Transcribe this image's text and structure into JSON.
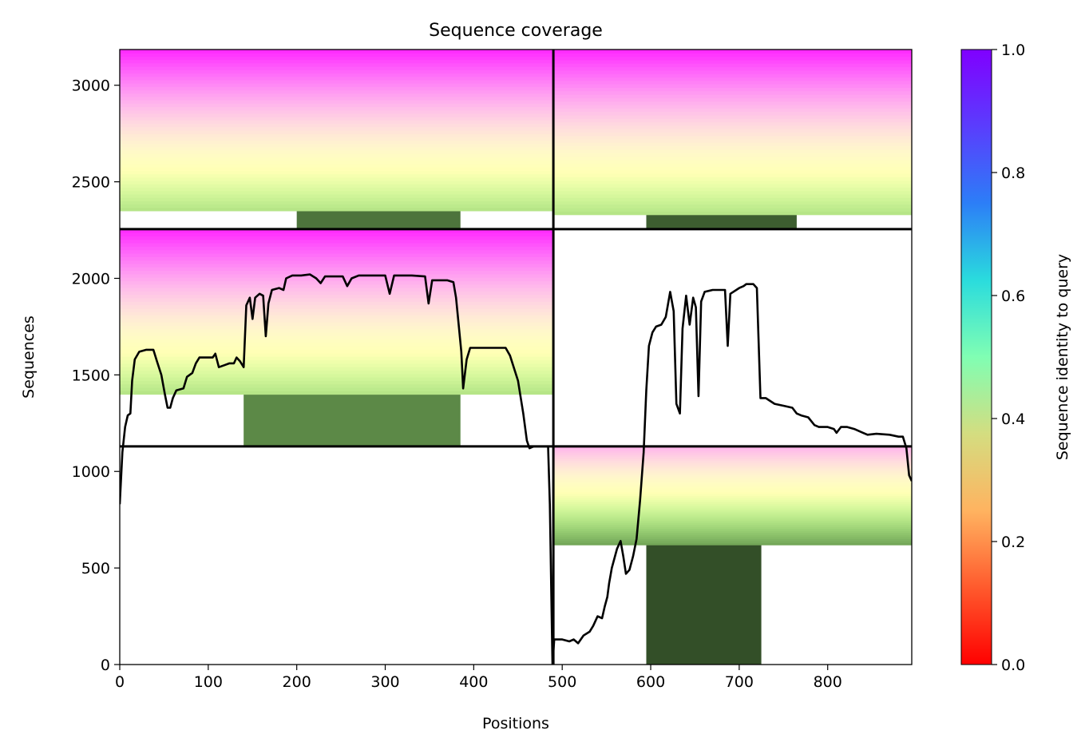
{
  "chart_data": {
    "type": "heatmap",
    "title": "Sequence coverage",
    "xlabel": "Positions",
    "ylabel": "Sequences",
    "xlim": [
      0,
      895
    ],
    "ylim": [
      0,
      3185
    ],
    "xticks": [
      0,
      100,
      200,
      300,
      400,
      500,
      600,
      700,
      800
    ],
    "yticks": [
      0,
      500,
      1000,
      1500,
      2000,
      2500,
      3000
    ],
    "chain_boundary_x": 490,
    "chain_boundary_y": 1130,
    "panel_boundary_y": 2255,
    "colorbar": {
      "label": "Sequence identity to query",
      "colormap": "rainbow_r",
      "range": [
        0,
        1
      ],
      "ticks": [
        "0.0",
        "0.2",
        "0.4",
        "0.6",
        "0.8",
        "1.0"
      ]
    },
    "blocks": [
      {
        "x0": 0,
        "x1": 490,
        "y0": 1130,
        "y1": 1400,
        "identity": 0.18,
        "x_extent": [
          140,
          385
        ]
      },
      {
        "x0": 0,
        "x1": 490,
        "y0": 1400,
        "y1": 2255,
        "identity_bottom": 0.35,
        "identity_top": 0.95
      },
      {
        "x0": 0,
        "x1": 490,
        "y0": 2255,
        "y1": 2350,
        "identity": 0.15,
        "x_extent": [
          200,
          385
        ]
      },
      {
        "x0": 0,
        "x1": 490,
        "y0": 2350,
        "y1": 3185,
        "identity_bottom": 0.35,
        "identity_top": 0.95
      },
      {
        "x0": 490,
        "x1": 895,
        "y0": 0,
        "y1": 620,
        "identity": 0.1,
        "x_extent": [
          595,
          725
        ]
      },
      {
        "x0": 490,
        "x1": 895,
        "y0": 620,
        "y1": 1130,
        "identity_bottom": 0.22,
        "identity_top": 0.75
      },
      {
        "x0": 490,
        "x1": 895,
        "y0": 2255,
        "y1": 2330,
        "identity": 0.12,
        "x_extent": [
          595,
          765
        ]
      },
      {
        "x0": 490,
        "x1": 895,
        "y0": 2330,
        "y1": 3185,
        "identity_bottom": 0.35,
        "identity_top": 0.95
      }
    ],
    "coverage_line": {
      "name": "coverage",
      "points": [
        [
          0,
          830
        ],
        [
          3,
          1100
        ],
        [
          6,
          1230
        ],
        [
          9,
          1290
        ],
        [
          12,
          1300
        ],
        [
          14,
          1470
        ],
        [
          17,
          1580
        ],
        [
          22,
          1620
        ],
        [
          30,
          1630
        ],
        [
          38,
          1630
        ],
        [
          42,
          1570
        ],
        [
          47,
          1500
        ],
        [
          51,
          1400
        ],
        [
          54,
          1330
        ],
        [
          57,
          1330
        ],
        [
          60,
          1380
        ],
        [
          64,
          1420
        ],
        [
          72,
          1430
        ],
        [
          76,
          1490
        ],
        [
          82,
          1510
        ],
        [
          86,
          1560
        ],
        [
          90,
          1590
        ],
        [
          98,
          1590
        ],
        [
          105,
          1590
        ],
        [
          108,
          1610
        ],
        [
          112,
          1540
        ],
        [
          118,
          1550
        ],
        [
          124,
          1560
        ],
        [
          129,
          1560
        ],
        [
          132,
          1590
        ],
        [
          136,
          1570
        ],
        [
          140,
          1540
        ],
        [
          143,
          1860
        ],
        [
          147,
          1900
        ],
        [
          150,
          1790
        ],
        [
          153,
          1900
        ],
        [
          158,
          1920
        ],
        [
          162,
          1910
        ],
        [
          165,
          1700
        ],
        [
          168,
          1870
        ],
        [
          172,
          1940
        ],
        [
          180,
          1950
        ],
        [
          185,
          1940
        ],
        [
          188,
          2000
        ],
        [
          195,
          2015
        ],
        [
          205,
          2015
        ],
        [
          215,
          2020
        ],
        [
          222,
          2000
        ],
        [
          227,
          1975
        ],
        [
          232,
          2010
        ],
        [
          245,
          2010
        ],
        [
          252,
          2010
        ],
        [
          257,
          1960
        ],
        [
          262,
          2000
        ],
        [
          270,
          2015
        ],
        [
          285,
          2015
        ],
        [
          300,
          2015
        ],
        [
          305,
          1920
        ],
        [
          310,
          2015
        ],
        [
          330,
          2015
        ],
        [
          345,
          2010
        ],
        [
          349,
          1870
        ],
        [
          353,
          1990
        ],
        [
          370,
          1990
        ],
        [
          377,
          1980
        ],
        [
          380,
          1900
        ],
        [
          383,
          1760
        ],
        [
          386,
          1620
        ],
        [
          388,
          1430
        ],
        [
          392,
          1580
        ],
        [
          396,
          1640
        ],
        [
          400,
          1640
        ],
        [
          410,
          1640
        ],
        [
          425,
          1640
        ],
        [
          436,
          1640
        ],
        [
          441,
          1600
        ],
        [
          450,
          1470
        ],
        [
          456,
          1300
        ],
        [
          460,
          1160
        ],
        [
          463,
          1120
        ],
        [
          468,
          1130
        ],
        [
          478,
          1130
        ],
        [
          484,
          1130
        ],
        [
          486,
          830
        ],
        [
          489,
          0
        ],
        [
          491,
          130
        ],
        [
          500,
          130
        ],
        [
          508,
          120
        ],
        [
          513,
          130
        ],
        [
          518,
          110
        ],
        [
          524,
          150
        ],
        [
          531,
          170
        ],
        [
          535,
          200
        ],
        [
          540,
          250
        ],
        [
          545,
          240
        ],
        [
          548,
          300
        ],
        [
          551,
          350
        ],
        [
          553,
          420
        ],
        [
          556,
          500
        ],
        [
          559,
          550
        ],
        [
          562,
          600
        ],
        [
          566,
          640
        ],
        [
          569,
          560
        ],
        [
          572,
          470
        ],
        [
          576,
          490
        ],
        [
          580,
          560
        ],
        [
          584,
          650
        ],
        [
          588,
          850
        ],
        [
          592,
          1100
        ],
        [
          595,
          1420
        ],
        [
          598,
          1650
        ],
        [
          602,
          1720
        ],
        [
          606,
          1750
        ],
        [
          612,
          1760
        ],
        [
          617,
          1800
        ],
        [
          622,
          1930
        ],
        [
          626,
          1830
        ],
        [
          629,
          1350
        ],
        [
          633,
          1300
        ],
        [
          636,
          1740
        ],
        [
          640,
          1910
        ],
        [
          644,
          1760
        ],
        [
          648,
          1900
        ],
        [
          651,
          1850
        ],
        [
          654,
          1390
        ],
        [
          657,
          1880
        ],
        [
          661,
          1930
        ],
        [
          670,
          1940
        ],
        [
          684,
          1940
        ],
        [
          687,
          1650
        ],
        [
          690,
          1920
        ],
        [
          700,
          1950
        ],
        [
          705,
          1960
        ],
        [
          708,
          1970
        ],
        [
          716,
          1970
        ],
        [
          720,
          1950
        ],
        [
          724,
          1380
        ],
        [
          730,
          1380
        ],
        [
          740,
          1350
        ],
        [
          750,
          1340
        ],
        [
          760,
          1330
        ],
        [
          765,
          1300
        ],
        [
          770,
          1290
        ],
        [
          778,
          1280
        ],
        [
          785,
          1240
        ],
        [
          790,
          1230
        ],
        [
          800,
          1230
        ],
        [
          807,
          1220
        ],
        [
          810,
          1200
        ],
        [
          815,
          1230
        ],
        [
          822,
          1230
        ],
        [
          830,
          1220
        ],
        [
          840,
          1200
        ],
        [
          845,
          1190
        ],
        [
          855,
          1195
        ],
        [
          870,
          1190
        ],
        [
          880,
          1180
        ],
        [
          885,
          1180
        ],
        [
          889,
          1120
        ],
        [
          892,
          980
        ],
        [
          895,
          950
        ]
      ]
    }
  }
}
